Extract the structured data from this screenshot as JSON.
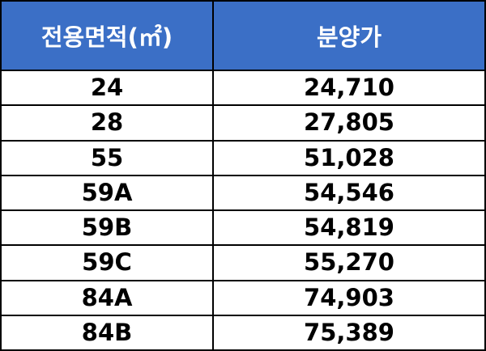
{
  "table": {
    "header": [
      "전용면적(㎡)",
      "분양가"
    ],
    "rows": [
      [
        "24",
        "24,710"
      ],
      [
        "28",
        "27,805"
      ],
      [
        "55",
        "51,028"
      ],
      [
        "59A",
        "54,546"
      ],
      [
        "59B",
        "54,819"
      ],
      [
        "59C",
        "55,270"
      ],
      [
        "84A",
        "74,903"
      ],
      [
        "84B",
        "75,389"
      ]
    ]
  }
}
